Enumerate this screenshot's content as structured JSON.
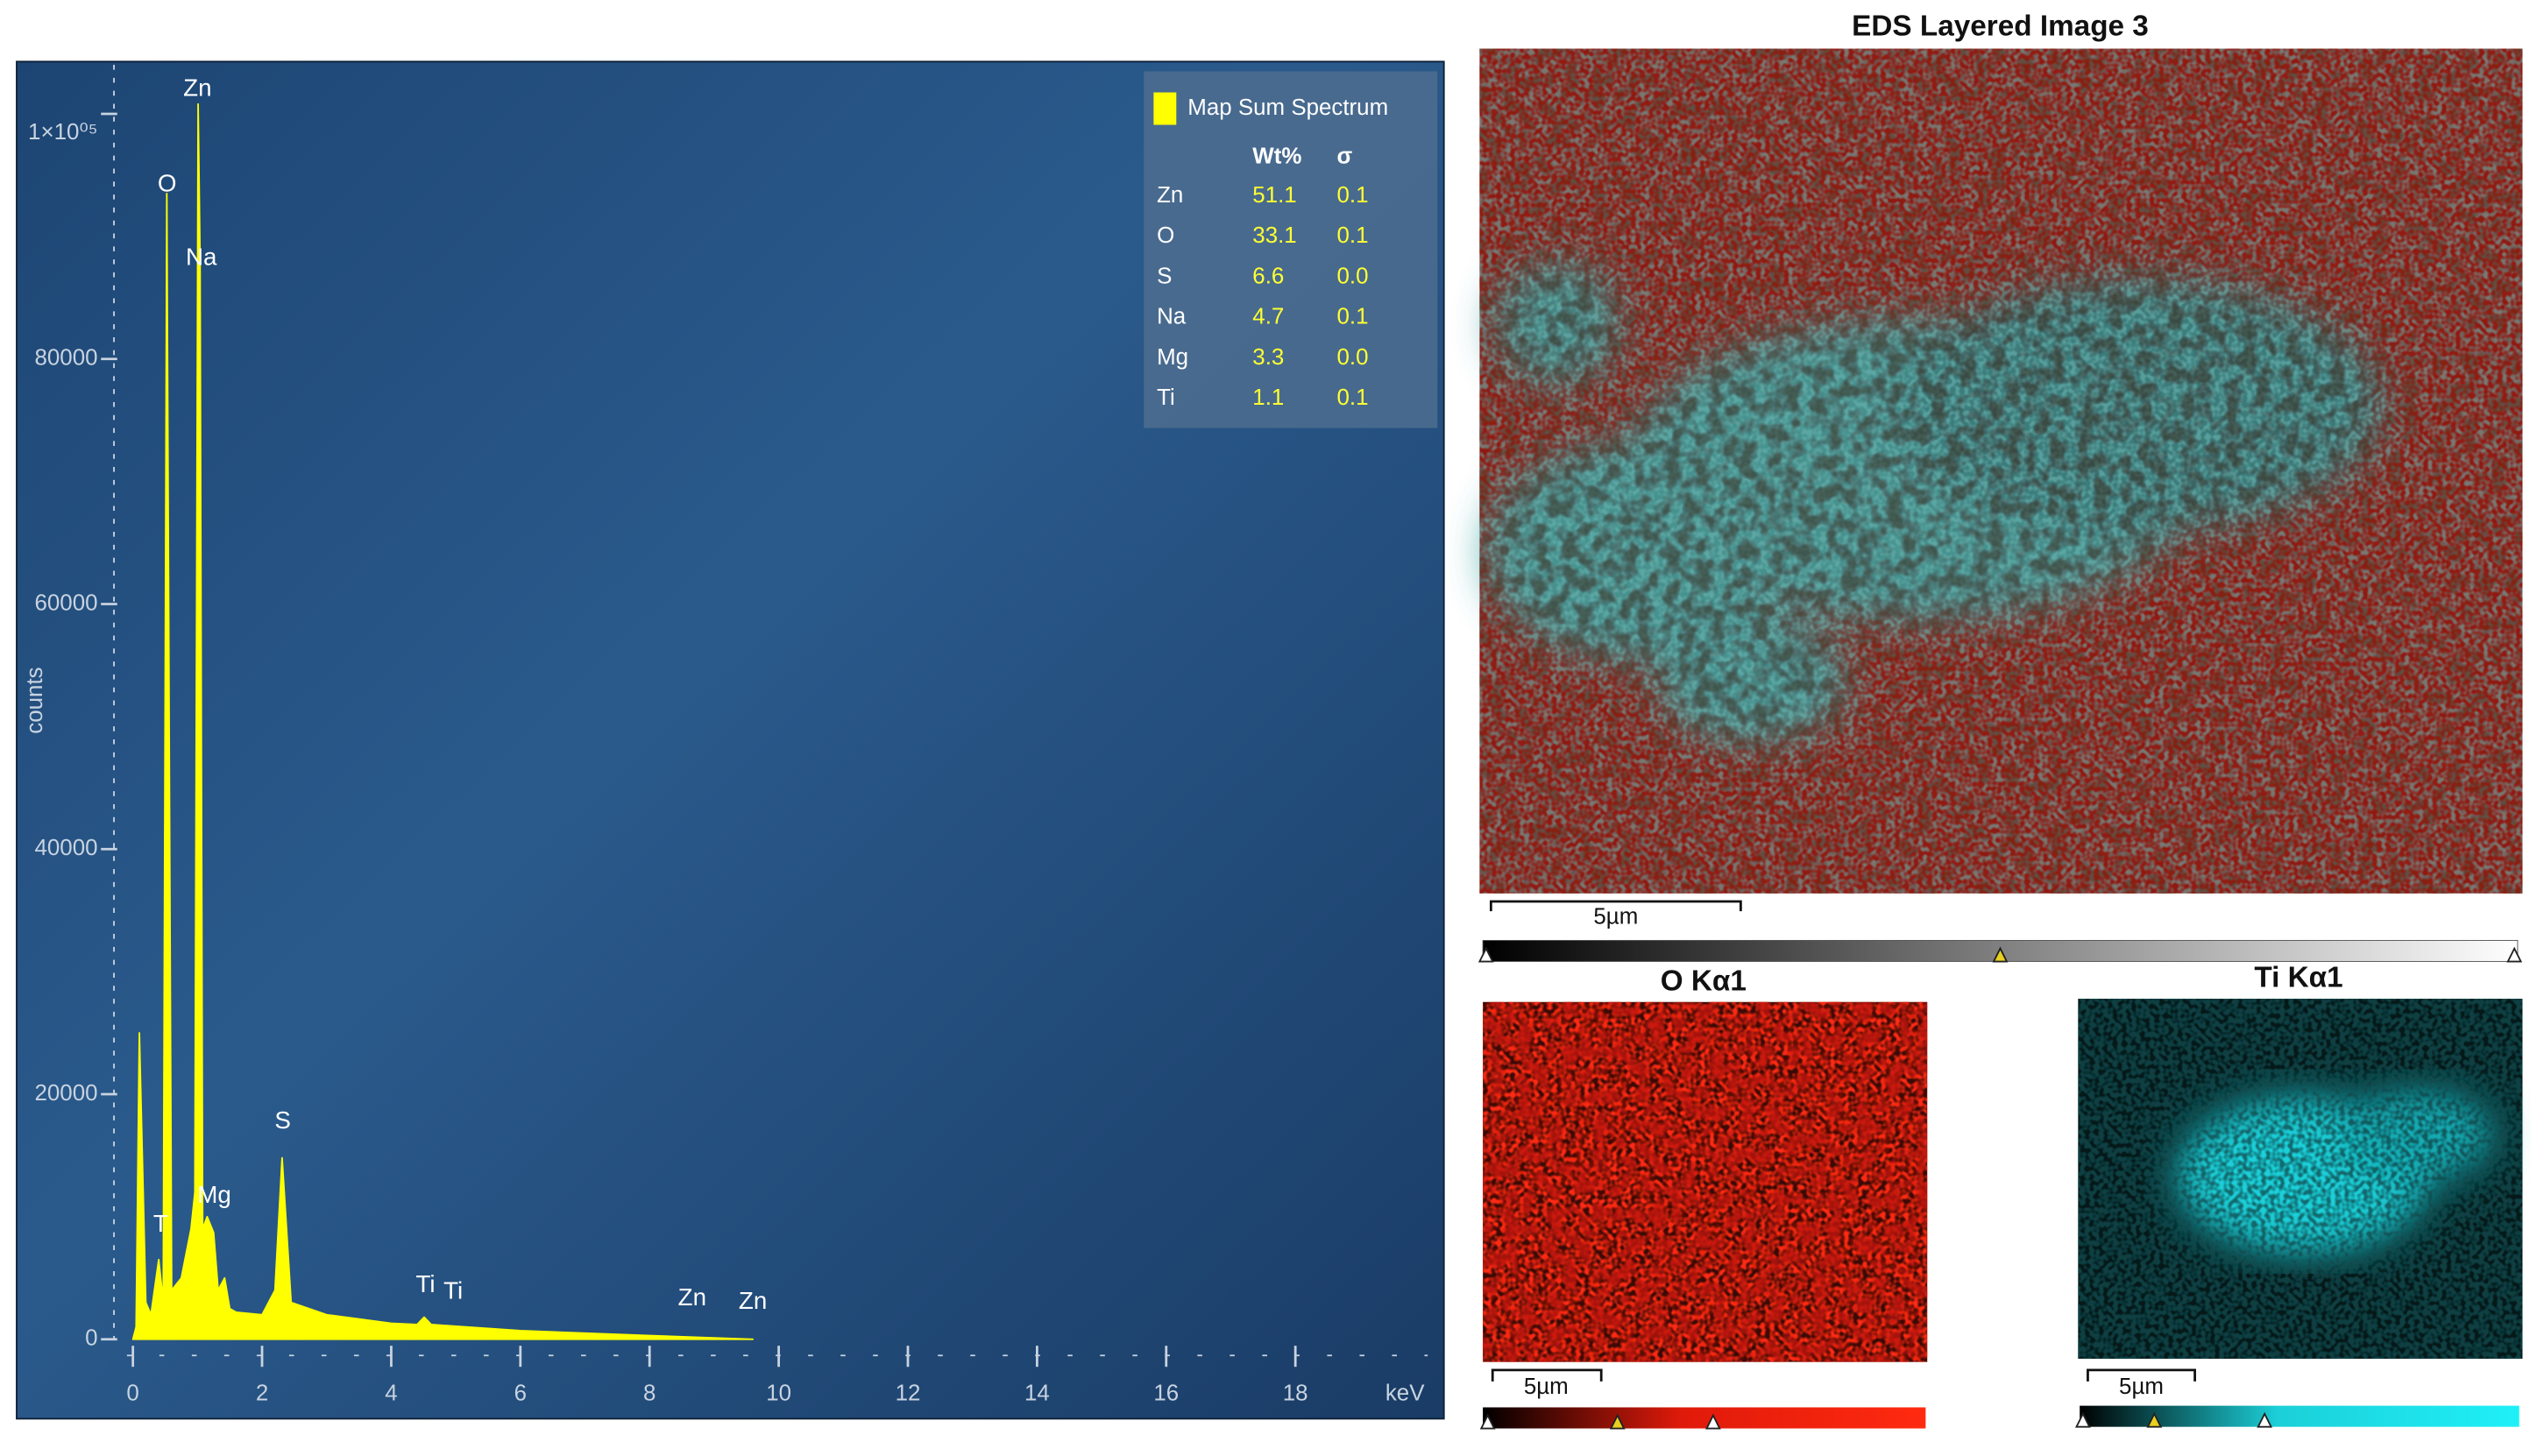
{
  "chart_data": {
    "type": "area",
    "x_label": "keV",
    "y_label": "counts",
    "x": [
      0,
      0.05,
      0.1,
      0.2,
      0.28,
      0.4,
      0.47,
      0.525,
      0.6,
      0.75,
      0.9,
      0.96,
      1.01,
      1.04,
      1.08,
      1.15,
      1.25,
      1.32,
      1.42,
      1.5,
      1.6,
      2.0,
      2.2,
      2.31,
      2.45,
      3.0,
      4.0,
      4.4,
      4.51,
      4.62,
      6.0,
      8.0,
      9.6
    ],
    "series": [
      {
        "name": "Map Sum Spectrum",
        "color": "#ffff00",
        "values": [
          0,
          1000,
          25000,
          3000,
          2000,
          6500,
          3000,
          93500,
          4000,
          5000,
          9000,
          12000,
          100800,
          88000,
          9000,
          10000,
          8700,
          4000,
          5000,
          2500,
          2200,
          2000,
          4000,
          14800,
          3000,
          2000,
          1300,
          1200,
          1800,
          1200,
          700,
          300,
          0
        ]
      }
    ],
    "xlim": [
      -1.8,
      20.3
    ],
    "xticks": [
      0,
      2,
      4,
      6,
      8,
      10,
      12,
      14,
      16,
      18
    ],
    "ylim": [
      0,
      104000
    ],
    "yticks": [
      0,
      20000,
      40000,
      60000,
      80000,
      {
        "value": 100000,
        "label": "1×10⁰⁵"
      }
    ],
    "peak_labels": [
      {
        "text": "Zn",
        "x": 1.0,
        "y": 102000
      },
      {
        "text": "O",
        "x": 0.53,
        "y": 94200
      },
      {
        "text": "Na",
        "x": 1.06,
        "y": 88200
      },
      {
        "text": "S",
        "x": 2.32,
        "y": 17750
      },
      {
        "text": "Mg",
        "x": 1.26,
        "y": 11650
      },
      {
        "text": "T",
        "x": 0.43,
        "y": 9300
      },
      {
        "text": "Ti",
        "x": 4.53,
        "y": 4370
      },
      {
        "text": "Ti",
        "x": 4.96,
        "y": 3840
      },
      {
        "text": "Zn",
        "x": 8.66,
        "y": 3300
      },
      {
        "text": "Zn",
        "x": 9.6,
        "y": 3000
      }
    ],
    "legend_table": {
      "columns": [
        "Wt%",
        "σ"
      ],
      "rows": [
        [
          "Zn",
          "51.1",
          "0.1"
        ],
        [
          "O",
          "33.1",
          "0.1"
        ],
        [
          "S",
          "6.6",
          "0.0"
        ],
        [
          "Na",
          "4.7",
          "0.1"
        ],
        [
          "Mg",
          "3.3",
          "0.0"
        ],
        [
          "Ti",
          "1.1",
          "0.1"
        ]
      ]
    }
  },
  "maps": {
    "layered_title": "EDS Layered Image 3",
    "layered_scale": "5µm",
    "o_title": "O Kα1",
    "o_scale": "5µm",
    "ti_title": "Ti Kα1",
    "ti_scale": "5µm"
  }
}
